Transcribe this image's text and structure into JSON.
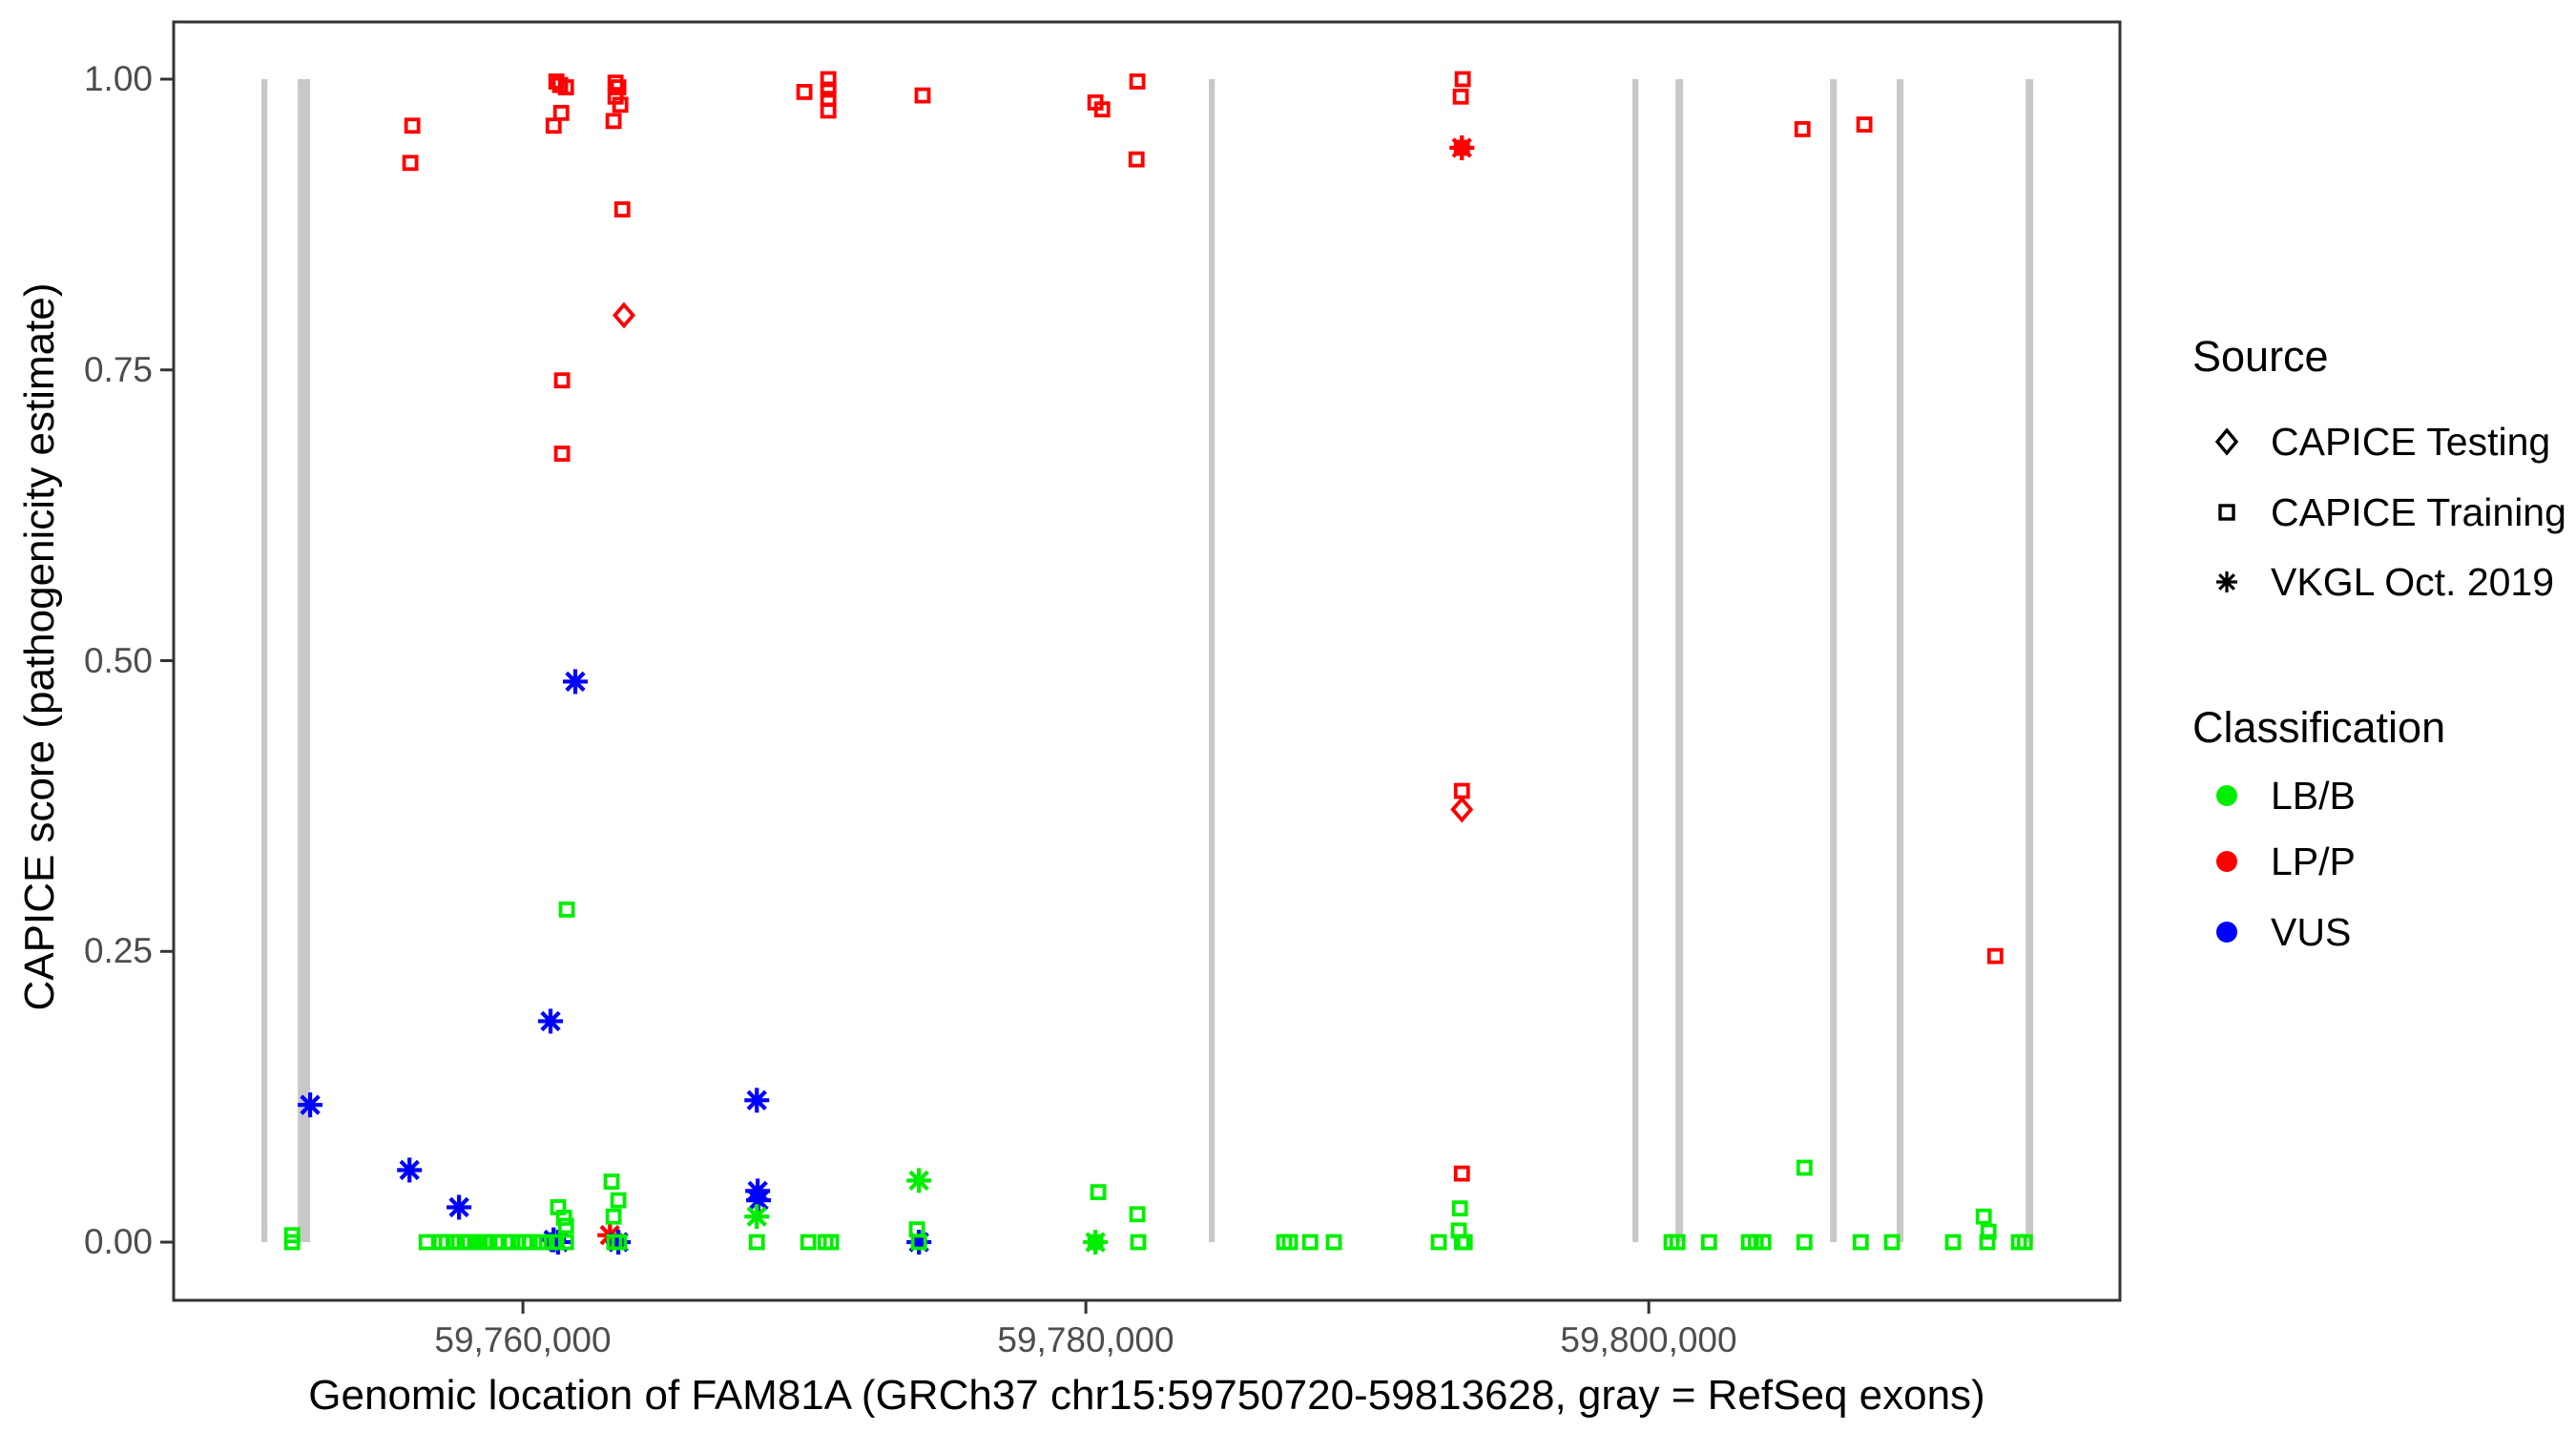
{
  "figure": {
    "x_axis_title": "Genomic location of FAM81A (GRCh37 chr15:59750720-59813628, gray = RefSeq exons)",
    "y_axis_title": "CAPICE score (pathogenicity estimate)"
  },
  "legend": {
    "source": {
      "title": "Source",
      "items": [
        {
          "label": "CAPICE Testing",
          "shape": "diamond"
        },
        {
          "label": "CAPICE Training",
          "shape": "square"
        },
        {
          "label": "VKGL Oct. 2019",
          "shape": "asterisk"
        }
      ]
    },
    "classification": {
      "title": "Classification",
      "items": [
        {
          "label": "LB/B",
          "color": "#00EE00"
        },
        {
          "label": "LP/P",
          "color": "#FF0000"
        },
        {
          "label": "VUS",
          "color": "#0000FF"
        }
      ]
    }
  },
  "chart_data": {
    "type": "scatter",
    "title": "",
    "xlabel": "Genomic location of FAM81A (GRCh37 chr15:59750720-59813628, gray = RefSeq exons)",
    "ylabel": "CAPICE score (pathogenicity estimate)",
    "grid": false,
    "legend_position": "right",
    "x_axis": {
      "min": 59747590,
      "max": 59816740,
      "ticks": [
        {
          "value": 59760000,
          "label": "59,760,000"
        },
        {
          "value": 59780000,
          "label": "59,780,000"
        },
        {
          "value": 59800000,
          "label": "59,800,000"
        }
      ]
    },
    "y_axis": {
      "min": -0.05,
      "max": 1.0492,
      "ticks": [
        {
          "value": 1.0,
          "label": "1.00"
        },
        {
          "value": 0.75,
          "label": "0.75"
        },
        {
          "value": 0.5,
          "label": "0.50"
        },
        {
          "value": 0.25,
          "label": "0.25"
        },
        {
          "value": 0.0,
          "label": "0.00"
        }
      ]
    },
    "exon_color": "#C8C8C8",
    "exons_bp": [
      [
        59750710,
        59750920
      ],
      [
        59752000,
        59752440
      ],
      [
        59784370,
        59784580
      ],
      [
        59799420,
        59799630
      ],
      [
        59800950,
        59801220
      ],
      [
        59806440,
        59806680
      ],
      [
        59808810,
        59809050
      ],
      [
        59813390,
        59813660
      ]
    ],
    "classification_colors": {
      "LB/B": "#00EE00",
      "LP/P": "#FF0000",
      "VUS": "#0000FF"
    },
    "source_shapes": {
      "CAPICE Testing": "diamond",
      "CAPICE Training": "square",
      "VKGL Oct. 2019": "asterisk"
    },
    "points": [
      [
        59756000,
        0.928,
        "LP/P",
        "CAPICE Training"
      ],
      [
        59756070,
        0.96,
        "LP/P",
        "CAPICE Training"
      ],
      [
        59761090,
        0.96,
        "LP/P",
        "CAPICE Training"
      ],
      [
        59761190,
        0.998,
        "LP/P",
        "CAPICE Training"
      ],
      [
        59761320,
        0.995,
        "LP/P",
        "CAPICE Training"
      ],
      [
        59761360,
        0.971,
        "LP/P",
        "CAPICE Training"
      ],
      [
        59761530,
        0.993,
        "LP/P",
        "CAPICE Training"
      ],
      [
        59761390,
        0.741,
        "LP/P",
        "CAPICE Training"
      ],
      [
        59761390,
        0.678,
        "LP/P",
        "CAPICE Training"
      ],
      [
        59763220,
        0.964,
        "LP/P",
        "CAPICE Training"
      ],
      [
        59763290,
        0.997,
        "LP/P",
        "CAPICE Training"
      ],
      [
        59763290,
        0.985,
        "LP/P",
        "CAPICE Training"
      ],
      [
        59763390,
        0.993,
        "LP/P",
        "CAPICE Training"
      ],
      [
        59763460,
        0.978,
        "LP/P",
        "CAPICE Training"
      ],
      [
        59763530,
        0.888,
        "LP/P",
        "CAPICE Training"
      ],
      [
        59763590,
        0.797,
        "LP/P",
        "CAPICE Testing"
      ],
      [
        59763090,
        0.006,
        "LP/P",
        "VKGL Oct. 2019"
      ],
      [
        59770000,
        0.989,
        "LP/P",
        "CAPICE Training"
      ],
      [
        59770850,
        1.0,
        "LP/P",
        "CAPICE Training"
      ],
      [
        59770850,
        0.991,
        "LP/P",
        "CAPICE Training"
      ],
      [
        59770850,
        0.983,
        "LP/P",
        "CAPICE Training"
      ],
      [
        59770850,
        0.973,
        "LP/P",
        "CAPICE Training"
      ],
      [
        59774200,
        0.986,
        "LP/P",
        "CAPICE Training"
      ],
      [
        59780340,
        0.98,
        "LP/P",
        "CAPICE Training"
      ],
      [
        59780580,
        0.974,
        "LP/P",
        "CAPICE Training"
      ],
      [
        59781830,
        0.998,
        "LP/P",
        "CAPICE Training"
      ],
      [
        59781800,
        0.931,
        "LP/P",
        "CAPICE Training"
      ],
      [
        59793390,
        1.0,
        "LP/P",
        "CAPICE Training"
      ],
      [
        59793320,
        0.985,
        "LP/P",
        "CAPICE Training"
      ],
      [
        59793360,
        0.941,
        "LP/P",
        "CAPICE Training"
      ],
      [
        59793360,
        0.941,
        "LP/P",
        "VKGL Oct. 2019"
      ],
      [
        59793360,
        0.388,
        "LP/P",
        "CAPICE Training"
      ],
      [
        59793360,
        0.372,
        "LP/P",
        "CAPICE Testing"
      ],
      [
        59793360,
        0.059,
        "LP/P",
        "CAPICE Training"
      ],
      [
        59805460,
        0.957,
        "LP/P",
        "CAPICE Training"
      ],
      [
        59807660,
        0.961,
        "LP/P",
        "CAPICE Training"
      ],
      [
        59812310,
        0.246,
        "LP/P",
        "CAPICE Training"
      ],
      [
        59752440,
        0.118,
        "VUS",
        "VKGL Oct. 2019"
      ],
      [
        59755970,
        0.062,
        "VUS",
        "VKGL Oct. 2019"
      ],
      [
        59757730,
        0.03,
        "VUS",
        "VKGL Oct. 2019"
      ],
      [
        59760980,
        0.19,
        "VUS",
        "VKGL Oct. 2019"
      ],
      [
        59761860,
        0.482,
        "VUS",
        "VKGL Oct. 2019"
      ],
      [
        59761090,
        0.002,
        "VUS",
        "VKGL Oct. 2019"
      ],
      [
        59761250,
        0.0,
        "VUS",
        "VKGL Oct. 2019"
      ],
      [
        59763390,
        0.0,
        "VUS",
        "VKGL Oct. 2019"
      ],
      [
        59768310,
        0.122,
        "VUS",
        "VKGL Oct. 2019"
      ],
      [
        59768340,
        0.044,
        "VUS",
        "VKGL Oct. 2019"
      ],
      [
        59768370,
        0.036,
        "VUS",
        "VKGL Oct. 2019"
      ],
      [
        59774070,
        0.0,
        "VUS",
        "VKGL Oct. 2019"
      ],
      [
        59751800,
        0.006,
        "LB/B",
        "CAPICE Training"
      ],
      [
        59751800,
        0.0,
        "LB/B",
        "CAPICE Training"
      ],
      [
        59756580,
        0.0,
        "LB/B",
        "CAPICE Training"
      ],
      [
        59757090,
        0.0,
        "LB/B",
        "CAPICE Training"
      ],
      [
        59757290,
        0.0,
        "LB/B",
        "CAPICE Training"
      ],
      [
        59757590,
        0.0,
        "LB/B",
        "CAPICE Training"
      ],
      [
        59757930,
        0.0,
        "LB/B",
        "CAPICE Training"
      ],
      [
        59758100,
        0.0,
        "LB/B",
        "CAPICE Training"
      ],
      [
        59758300,
        0.0,
        "LB/B",
        "CAPICE Training"
      ],
      [
        59758470,
        0.0,
        "LB/B",
        "CAPICE Training"
      ],
      [
        59758640,
        0.0,
        "LB/B",
        "CAPICE Training"
      ],
      [
        59758810,
        0.0,
        "LB/B",
        "CAPICE Training"
      ],
      [
        59759150,
        0.0,
        "LB/B",
        "CAPICE Training"
      ],
      [
        59759490,
        0.0,
        "LB/B",
        "CAPICE Training"
      ],
      [
        59759830,
        0.0,
        "LB/B",
        "CAPICE Training"
      ],
      [
        59760070,
        0.0,
        "LB/B",
        "CAPICE Training"
      ],
      [
        59760240,
        0.0,
        "LB/B",
        "CAPICE Training"
      ],
      [
        59760580,
        0.0,
        "LB/B",
        "CAPICE Training"
      ],
      [
        59760850,
        0.0,
        "LB/B",
        "CAPICE Training"
      ],
      [
        59761190,
        0.0,
        "LB/B",
        "CAPICE Training"
      ],
      [
        59761530,
        0.0,
        "LB/B",
        "CAPICE Training"
      ],
      [
        59761250,
        0.03,
        "LB/B",
        "CAPICE Training"
      ],
      [
        59761460,
        0.021,
        "LB/B",
        "CAPICE Training"
      ],
      [
        59761530,
        0.014,
        "LB/B",
        "CAPICE Training"
      ],
      [
        59761560,
        0.286,
        "LB/B",
        "CAPICE Training"
      ],
      [
        59763150,
        0.052,
        "LB/B",
        "CAPICE Training"
      ],
      [
        59763390,
        0.036,
        "LB/B",
        "CAPICE Training"
      ],
      [
        59763220,
        0.022,
        "LB/B",
        "CAPICE Training"
      ],
      [
        59763250,
        0.0,
        "LB/B",
        "CAPICE Training"
      ],
      [
        59763420,
        0.0,
        "LB/B",
        "CAPICE Training"
      ],
      [
        59768310,
        0.0,
        "LB/B",
        "CAPICE Training"
      ],
      [
        59768310,
        0.022,
        "LB/B",
        "VKGL Oct. 2019"
      ],
      [
        59770140,
        0.0,
        "LB/B",
        "CAPICE Training"
      ],
      [
        59770750,
        0.0,
        "LB/B",
        "CAPICE Training"
      ],
      [
        59770950,
        0.0,
        "LB/B",
        "CAPICE Training"
      ],
      [
        59774000,
        0.011,
        "LB/B",
        "CAPICE Training"
      ],
      [
        59774070,
        0.0,
        "LB/B",
        "CAPICE Training"
      ],
      [
        59774070,
        0.053,
        "LB/B",
        "VKGL Oct. 2019"
      ],
      [
        59780340,
        0.0,
        "LB/B",
        "CAPICE Training"
      ],
      [
        59780340,
        0.0,
        "LB/B",
        "VKGL Oct. 2019"
      ],
      [
        59780440,
        0.043,
        "LB/B",
        "CAPICE Training"
      ],
      [
        59781830,
        0.024,
        "LB/B",
        "CAPICE Training"
      ],
      [
        59781860,
        0.0,
        "LB/B",
        "CAPICE Training"
      ],
      [
        59787050,
        0.0,
        "LB/B",
        "CAPICE Training"
      ],
      [
        59787250,
        0.0,
        "LB/B",
        "CAPICE Training"
      ],
      [
        59787970,
        0.0,
        "LB/B",
        "CAPICE Training"
      ],
      [
        59788810,
        0.0,
        "LB/B",
        "CAPICE Training"
      ],
      [
        59792540,
        0.0,
        "LB/B",
        "CAPICE Training"
      ],
      [
        59793290,
        0.029,
        "LB/B",
        "CAPICE Training"
      ],
      [
        59793250,
        0.01,
        "LB/B",
        "CAPICE Training"
      ],
      [
        59793360,
        0.0,
        "LB/B",
        "CAPICE Training"
      ],
      [
        59793460,
        0.0,
        "LB/B",
        "CAPICE Training"
      ],
      [
        59800810,
        0.0,
        "LB/B",
        "CAPICE Training"
      ],
      [
        59801020,
        0.0,
        "LB/B",
        "CAPICE Training"
      ],
      [
        59802140,
        0.0,
        "LB/B",
        "CAPICE Training"
      ],
      [
        59803560,
        0.0,
        "LB/B",
        "CAPICE Training"
      ],
      [
        59803800,
        0.0,
        "LB/B",
        "CAPICE Training"
      ],
      [
        59804070,
        0.0,
        "LB/B",
        "CAPICE Training"
      ],
      [
        59805530,
        0.064,
        "LB/B",
        "CAPICE Training"
      ],
      [
        59805530,
        0.0,
        "LB/B",
        "CAPICE Training"
      ],
      [
        59807530,
        0.0,
        "LB/B",
        "CAPICE Training"
      ],
      [
        59808640,
        0.0,
        "LB/B",
        "CAPICE Training"
      ],
      [
        59810810,
        0.0,
        "LB/B",
        "CAPICE Training"
      ],
      [
        59811900,
        0.022,
        "LB/B",
        "CAPICE Training"
      ],
      [
        59812070,
        0.009,
        "LB/B",
        "CAPICE Training"
      ],
      [
        59812030,
        0.0,
        "LB/B",
        "CAPICE Training"
      ],
      [
        59813150,
        0.0,
        "LB/B",
        "CAPICE Training"
      ],
      [
        59813360,
        0.0,
        "LB/B",
        "CAPICE Training"
      ]
    ]
  }
}
